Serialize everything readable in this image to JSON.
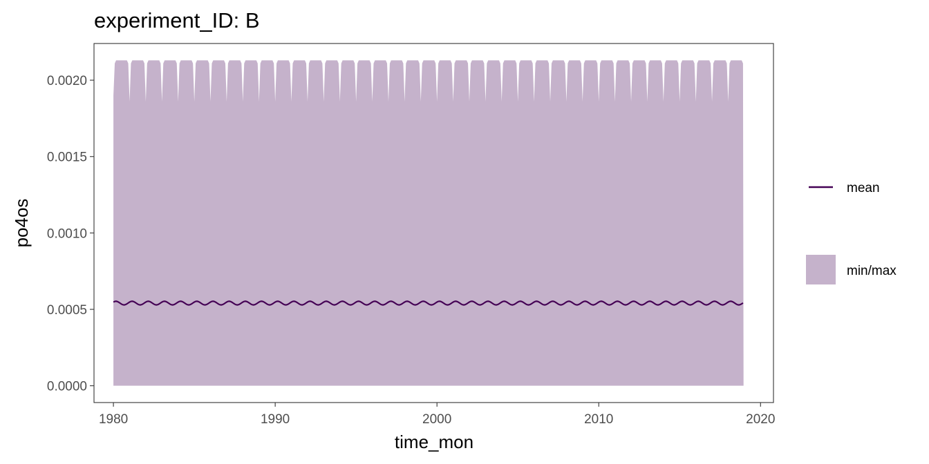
{
  "chart_data": {
    "type": "area",
    "title": "experiment_ID: B",
    "xlabel": "time_mon",
    "ylabel": "po4os",
    "xlim": [
      1978.8,
      2020.8
    ],
    "ylim": [
      -0.00011,
      0.00224
    ],
    "x_ticks": [
      1980,
      1990,
      2000,
      2010,
      2020
    ],
    "x_tick_labels": [
      "1980",
      "1990",
      "2000",
      "2010",
      "2020"
    ],
    "y_ticks": [
      0.0,
      0.0005,
      0.001,
      0.0015,
      0.002
    ],
    "y_tick_labels": [
      "0.0000",
      "0.0005",
      "0.0010",
      "0.0015",
      "0.0020"
    ],
    "grid": false,
    "legend_position": "right",
    "time_range": [
      1980.0,
      2018.95
    ],
    "series": [
      {
        "name": "min/max",
        "kind": "ribbon",
        "color": "#c5b2cb",
        "min_value": 0.0,
        "max_seasonal_high": 0.00213,
        "max_seasonal_low": 0.00186,
        "max_first_value": 0.0019
      },
      {
        "name": "mean",
        "kind": "line",
        "color": "#440154",
        "mean_level": 0.000541,
        "seasonal_amplitude": 1.2e-05
      }
    ]
  }
}
